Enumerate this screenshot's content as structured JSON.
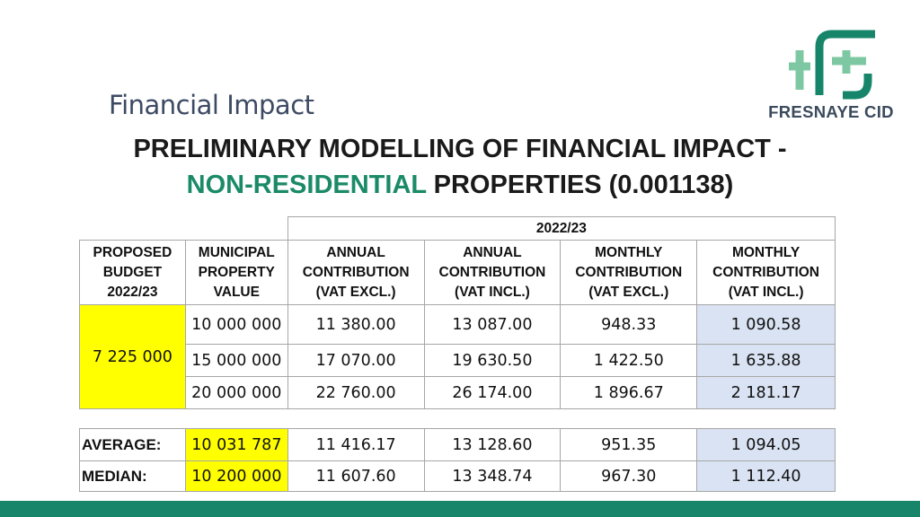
{
  "slide": {
    "subtitle": "Financial Impact",
    "heading_line1": "PRELIMINARY MODELLING OF FINANCIAL IMPACT -",
    "heading_highlight": "NON-RESIDENTIAL",
    "heading_rest": " PROPERTIES (0.001138)",
    "logo_text": "FRESNAYE CID",
    "brand_color": "#168569"
  },
  "table": {
    "year_header": "2022/23",
    "headers": {
      "budget": [
        "PROPOSED",
        "BUDGET",
        "2022/23"
      ],
      "value": [
        "MUNICIPAL",
        "PROPERTY",
        "VALUE"
      ],
      "annual_excl": [
        "ANNUAL",
        "CONTRIBUTION",
        "(VAT EXCL.)"
      ],
      "annual_incl": [
        "ANNUAL",
        "CONTRIBUTION",
        "(VAT INCL.)"
      ],
      "monthly_excl": [
        "MONTHLY",
        "CONTRIBUTION",
        "(VAT EXCL.)"
      ],
      "monthly_incl": [
        "MONTHLY",
        "CONTRIBUTION",
        "(VAT INCL.)"
      ]
    },
    "budget": "7 225 000",
    "rows": [
      {
        "value": "10 000 000",
        "annual_excl": "11 380.00",
        "annual_incl": "13 087.00",
        "monthly_excl": "948.33",
        "monthly_incl": "1 090.58"
      },
      {
        "value": "15 000 000",
        "annual_excl": "17 070.00",
        "annual_incl": "19 630.50",
        "monthly_excl": "1 422.50",
        "monthly_incl": "1 635.88"
      },
      {
        "value": "20 000 000",
        "annual_excl": "22 760.00",
        "annual_incl": "26 174.00",
        "monthly_excl": "1 896.67",
        "monthly_incl": "2 181.17"
      }
    ]
  },
  "summary": {
    "average": {
      "label": "AVERAGE:",
      "value": "10 031 787",
      "annual_excl": "11 416.17",
      "annual_incl": "13 128.60",
      "monthly_excl": "951.35",
      "monthly_incl": "1 094.05"
    },
    "median": {
      "label": "MEDIAN:",
      "value": "10 200 000",
      "annual_excl": "11 607.60",
      "annual_incl": "13 348.74",
      "monthly_excl": "967.30",
      "monthly_incl": "1 112.40"
    }
  }
}
